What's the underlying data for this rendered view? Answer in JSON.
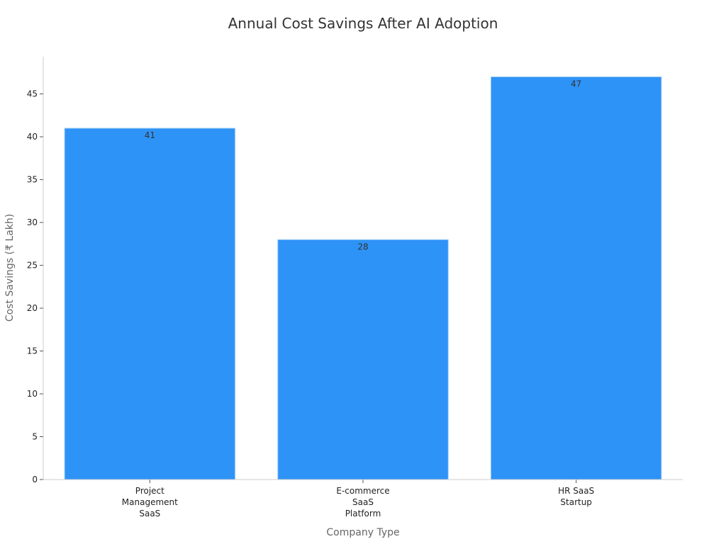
{
  "chart_data": {
    "type": "bar",
    "title": "Annual Cost Savings After AI Adoption",
    "xlabel": "Company Type",
    "ylabel": "Cost Savings (₹ Lakh)",
    "categories": [
      [
        "Project",
        "Management",
        "SaaS"
      ],
      [
        "E-commerce",
        "SaaS",
        "Platform"
      ],
      [
        "HR SaaS",
        "Startup"
      ]
    ],
    "values": [
      41,
      28,
      47
    ],
    "data_labels": [
      "41",
      "28",
      "47"
    ],
    "yticks": [
      0,
      5,
      10,
      15,
      20,
      25,
      30,
      35,
      40,
      45
    ],
    "ylim": [
      0,
      49.35
    ],
    "grid": false,
    "bar_color": "#2E93F7",
    "bar_edge_color": "#A9D0F5"
  }
}
